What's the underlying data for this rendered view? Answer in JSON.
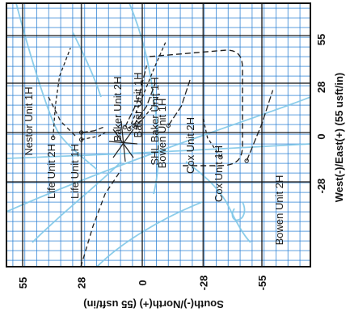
{
  "chart_data": {
    "type": "line",
    "orientation": "rotated-90",
    "title": "",
    "xlabel": "South(-)/North(+) (55 usft/in)",
    "ylabel": "West(-)/East(+) (55 usft/in)",
    "xticks": [
      55,
      28,
      0,
      -28,
      -55
    ],
    "yticks": [
      55,
      28,
      0,
      -28
    ],
    "xlim": [
      65,
      -85
    ],
    "ylim": [
      -40,
      70
    ],
    "grid": true,
    "colors": {
      "grid": "#2a7fd4",
      "background": "#ffffff",
      "light_trace": "#7fc8e8",
      "dark_trace": "#222222",
      "axis": "#111111"
    },
    "series": [
      {
        "name": "Nestor Unit 1H",
        "x": [
          41,
          40,
          38,
          33
        ],
        "y": [
          -3,
          15,
          32,
          48
        ]
      },
      {
        "name": "Life Unit 2H",
        "x": [
          28,
          22,
          18
        ],
        "y": [
          0,
          1,
          3
        ]
      },
      {
        "name": "Life Unit 1H",
        "x": [
          28,
          20,
          17
        ],
        "y": [
          -4,
          -2,
          0
        ]
      },
      {
        "name": "Baker Unit 2H",
        "x": [
          8,
          2,
          -2
        ],
        "y": [
          3,
          18,
          38
        ]
      },
      {
        "name": "Baker Unit 1H",
        "x": [
          6,
          0,
          -6,
          -11
        ],
        "y": [
          2,
          20,
          38,
          52
        ]
      },
      {
        "name": "SHL Baker Unit 1H",
        "x": [
          4,
          -2,
          -6
        ],
        "y": [
          4,
          15,
          28
        ]
      },
      {
        "name": "Bowen Unit 1H",
        "x": [
          3,
          -5,
          -8
        ],
        "y": [
          3,
          15,
          22
        ]
      },
      {
        "name": "Cox Unit 2H",
        "x": [
          -12,
          -18,
          -22
        ],
        "y": [
          4,
          15,
          30
        ]
      },
      {
        "name": "Cox Unit 1H",
        "x": [
          -36,
          -30,
          -28
        ],
        "y": [
          -14,
          -3,
          8
        ]
      },
      {
        "name": "Bowen Unit 2H",
        "x": [
          -48,
          -55,
          -60
        ],
        "y": [
          -16,
          5,
          24
        ]
      }
    ],
    "annotations": [
      "Nestor Unit 1H",
      "Life Unit 2H",
      "Life Unit 1H",
      "Baker Unit 2H",
      "Baker Unit 1H",
      "SHL Baker Unit 1H",
      "Bowen Unit 1H",
      "Cox Unit 2H",
      "Cox Unit 1H",
      "Bowen Unit 2H"
    ]
  }
}
